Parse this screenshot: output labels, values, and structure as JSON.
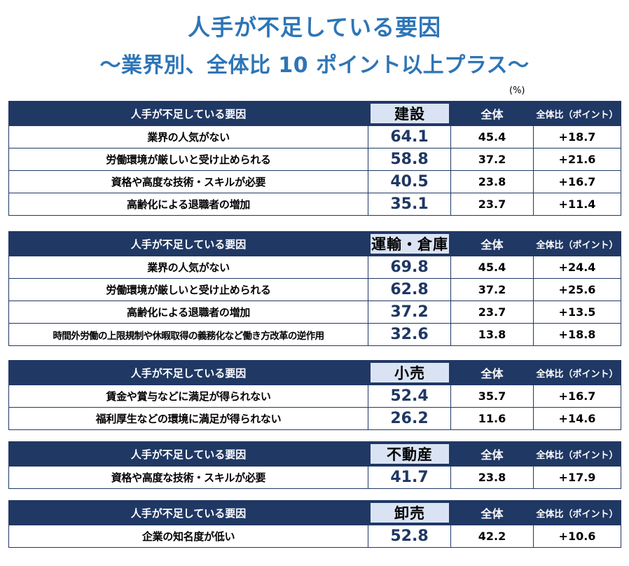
{
  "title": {
    "line1": "人手が不足している要因",
    "line2": "～業界別、全体比 10 ポイント以上プラス～"
  },
  "unit": "(%)",
  "header": {
    "reason": "人手が不足している要因",
    "total": "全体",
    "diff": "全体比（ポイント）"
  },
  "blocks": [
    {
      "industry": "建設",
      "rows": [
        {
          "reason": "業界の人気がない",
          "value": "64.1",
          "total": "45.4",
          "diff": "+18.7"
        },
        {
          "reason": "労働環境が厳しいと受け止められる",
          "value": "58.8",
          "total": "37.2",
          "diff": "+21.6"
        },
        {
          "reason": "資格や高度な技術・スキルが必要",
          "value": "40.5",
          "total": "23.8",
          "diff": "+16.7"
        },
        {
          "reason": "高齢化による退職者の増加",
          "value": "35.1",
          "total": "23.7",
          "diff": "+11.4"
        }
      ]
    },
    {
      "industry": "運輸・倉庫",
      "rows": [
        {
          "reason": "業界の人気がない",
          "value": "69.8",
          "total": "45.4",
          "diff": "+24.4"
        },
        {
          "reason": "労働環境が厳しいと受け止められる",
          "value": "62.8",
          "total": "37.2",
          "diff": "+25.6"
        },
        {
          "reason": "高齢化による退職者の増加",
          "value": "37.2",
          "total": "23.7",
          "diff": "+13.5"
        },
        {
          "reason": "時間外労働の上限規制や休暇取得の義務化など働き方改革の逆作用",
          "value": "32.6",
          "total": "13.8",
          "diff": "+18.8"
        }
      ]
    },
    {
      "industry": "小売",
      "rows": [
        {
          "reason": "賃金や賞与などに満足が得られない",
          "value": "52.4",
          "total": "35.7",
          "diff": "+16.7"
        },
        {
          "reason": "福利厚生などの環境に満足が得られない",
          "value": "26.2",
          "total": "11.6",
          "diff": "+14.6"
        }
      ]
    },
    {
      "industry": "不動産",
      "rows": [
        {
          "reason": "資格や高度な技術・スキルが必要",
          "value": "41.7",
          "total": "23.8",
          "diff": "+17.9"
        }
      ]
    },
    {
      "industry": "卸売",
      "rows": [
        {
          "reason": "企業の知名度が低い",
          "value": "52.8",
          "total": "42.2",
          "diff": "+10.6"
        }
      ]
    }
  ]
}
